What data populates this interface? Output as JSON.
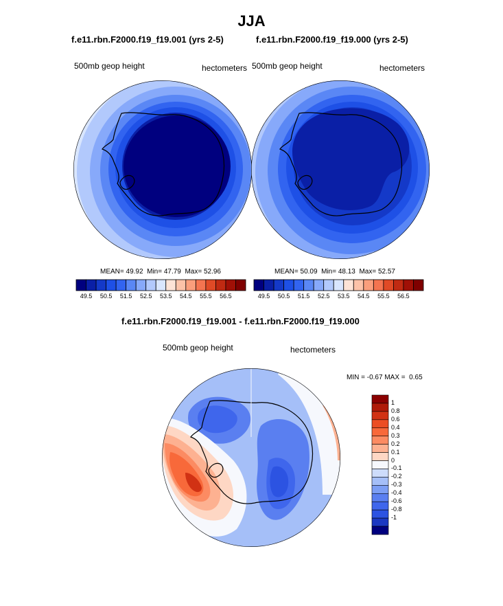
{
  "page_title": "JJA",
  "panels": [
    {
      "id": "panel1",
      "title": "f.e11.rbn.F2000.f19_f19.001 (yrs 2-5)",
      "left_label": "500mb geop height",
      "right_label": "hectometers",
      "stats": {
        "mean": "49.92",
        "min": "47.79",
        "max": "52.96"
      }
    },
    {
      "id": "panel2",
      "title": "f.e11.rbn.F2000.f19_f19.000 (yrs 2-5)",
      "left_label": "500mb geop height",
      "right_label": "hectometers",
      "stats": {
        "mean": "50.09",
        "min": "48.13",
        "max": "52.57"
      }
    }
  ],
  "stats_labels": {
    "mean": "MEAN=",
    "min": "Min=",
    "max": "Max=",
    "diff_min": "MIN =",
    "diff_max": "MAX ="
  },
  "abs_colorbar": {
    "colors": [
      "#00007f",
      "#0a1fa6",
      "#1439c8",
      "#1e50e6",
      "#3264f0",
      "#5a87f5",
      "#87a9fa",
      "#b2c9fc",
      "#d9e6fe",
      "#fde3d6",
      "#fcc2a8",
      "#fa9e7c",
      "#f47450",
      "#e04a26",
      "#c02a12",
      "#a01006",
      "#7f0000"
    ],
    "tick_labels": [
      "49.5",
      "50.5",
      "51.5",
      "52.5",
      "53.5",
      "54.5",
      "55.5",
      "56.5"
    ]
  },
  "diff_panel": {
    "title": "f.e11.rbn.F2000.f19_f19.001 - f.e11.rbn.F2000.f19_f19.000",
    "left_label": "500mb geop height",
    "right_label": "hectometers",
    "min": "-0.67",
    "max": "0.65"
  },
  "diff_colorbar": {
    "colors": [
      "#8b0000",
      "#b01a08",
      "#d13214",
      "#ec4e24",
      "#f8693a",
      "#fc8b62",
      "#fdb191",
      "#fed7c4",
      "#f6f8fd",
      "#cddcfb",
      "#a5bff8",
      "#7c9ef4",
      "#5a7ff0",
      "#3f66ec",
      "#2c53e2",
      "#1b38c2",
      "#00007f"
    ],
    "tick_labels": [
      "1",
      "0.8",
      "0.6",
      "0.4",
      "0.3",
      "0.2",
      "0.1",
      "0",
      "-0.1",
      "-0.2",
      "-0.3",
      "-0.4",
      "-0.6",
      "-0.8",
      "-1"
    ]
  }
}
